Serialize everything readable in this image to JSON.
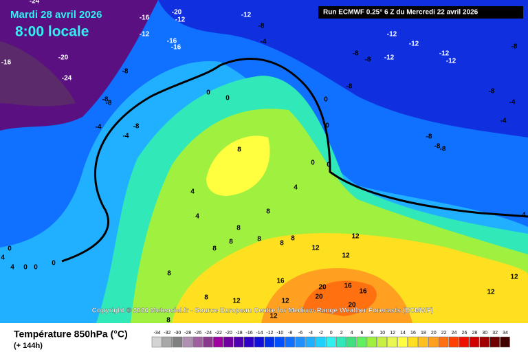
{
  "header": {
    "date": "Mardi 28 avril 2026",
    "time": "8:00 locale",
    "run": "Run ECMWF 0.25° 6 Z du Mercredi 22 avril 2026"
  },
  "copyright": "Copyright © 2026 Meteociel.fr - Source European Centre for Medium-Range Weather Forecasts (ECMWF)",
  "footer": {
    "title": "Température 850hPa (°C)",
    "step": "(+ 144h)"
  },
  "labels": [
    -24,
    -20,
    -16,
    -12,
    -12,
    -16,
    -12,
    -16,
    -16,
    -8,
    -4,
    -20,
    -24,
    -8,
    -8,
    -8,
    -4,
    -8,
    -4,
    0,
    0,
    8,
    0,
    0,
    -8,
    -12,
    -12,
    -8,
    -8,
    -12,
    -12,
    -12,
    -8,
    -8,
    -4,
    -4,
    -8,
    -8,
    -8,
    0,
    0,
    4,
    4,
    4,
    8,
    8,
    8,
    8,
    8,
    8,
    12,
    12,
    12,
    8,
    0,
    4,
    4,
    0,
    0,
    0,
    8,
    16,
    20,
    16,
    16,
    20,
    12,
    12,
    8,
    20,
    12,
    8,
    12,
    12,
    4
  ],
  "legend": {
    "ticks": [
      -34,
      -32,
      -30,
      -28,
      -26,
      -24,
      -22,
      -20,
      -18,
      -16,
      -14,
      -12,
      -10,
      -8,
      -6,
      -4,
      -2,
      0,
      2,
      4,
      6,
      8,
      10,
      12,
      14,
      16,
      18,
      20,
      22,
      24,
      26,
      28,
      30,
      32,
      34
    ],
    "colors": [
      "#d4d4d4",
      "#a8a8a8",
      "#808080",
      "#b090b0",
      "#a060a0",
      "#8a3a8a",
      "#a000a0",
      "#7000a0",
      "#5000b0",
      "#3000c8",
      "#1010d8",
      "#0030e8",
      "#0050ff",
      "#1070ff",
      "#2090ff",
      "#20b0ff",
      "#20d0ff",
      "#30f0f0",
      "#30e8b8",
      "#40e080",
      "#60f060",
      "#a0f040",
      "#c8f040",
      "#e8f850",
      "#ffff40",
      "#ffe020",
      "#ffc020",
      "#ffa020",
      "#ff7010",
      "#ff4000",
      "#f01000",
      "#d00000",
      "#a00000",
      "#700000",
      "#400000"
    ]
  }
}
